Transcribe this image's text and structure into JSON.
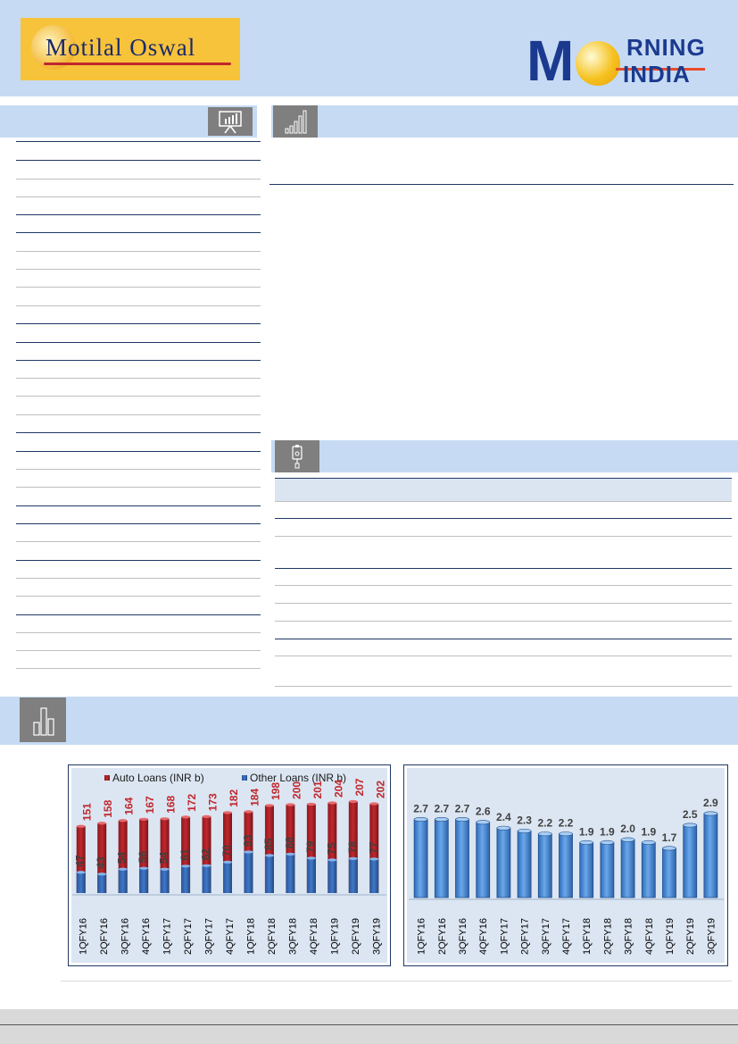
{
  "header": {
    "brand": "Motilal Oswal",
    "publication_m": "M",
    "publication_top": "RNING",
    "publication_bottom": "INDIA"
  },
  "icons": {
    "left_section": "presentation-chart-icon",
    "right_section": "bar-graph-icon",
    "mid_section": "clipboard-icon",
    "chart_section": "column-chart-icon"
  },
  "colors": {
    "header_bg": "#c6dbf3",
    "rule": "#203864",
    "auto_loans": "#c0272d",
    "other_loans": "#3f78c9",
    "bar_blue": "#4f8fd6"
  },
  "chart_data": [
    {
      "type": "bar",
      "categories": [
        "1QFY16",
        "2QFY16",
        "3QFY16",
        "4QFY16",
        "1QFY17",
        "2QFY17",
        "3QFY17",
        "4QFY17",
        "1QFY18",
        "2QFY18",
        "3QFY18",
        "4QFY18",
        "1QFY19",
        "2QFY19",
        "3QFY19"
      ],
      "series": [
        {
          "name": "Auto Loans (INR b)",
          "values": [
            151,
            158,
            164,
            167,
            168,
            172,
            173,
            182,
            184,
            198,
            200,
            201,
            204,
            207,
            202
          ],
          "color": "#c0272d"
        },
        {
          "name": "Other Loans (INR b)",
          "values": [
            47,
            43,
            54,
            56,
            54,
            61,
            62,
            70,
            93,
            85,
            88,
            79,
            75,
            78,
            77
          ],
          "color": "#3f78c9"
        }
      ],
      "legend": "top",
      "ylim": [
        0,
        210
      ],
      "grid": false
    },
    {
      "type": "bar",
      "categories": [
        "1QFY16",
        "2QFY16",
        "3QFY16",
        "4QFY16",
        "1QFY17",
        "2QFY17",
        "3QFY17",
        "4QFY17",
        "1QFY18",
        "2QFY18",
        "3QFY18",
        "4QFY18",
        "1QFY19",
        "2QFY19",
        "3QFY19"
      ],
      "values": [
        2.7,
        2.7,
        2.7,
        2.6,
        2.4,
        2.3,
        2.2,
        2.2,
        1.9,
        1.9,
        2.0,
        1.9,
        1.7,
        2.5,
        2.9
      ],
      "value_labels": [
        "2.7",
        "2.7",
        "2.7",
        "2.6",
        "2.4",
        "2.3",
        "2.2",
        "2.2",
        "1.9",
        "1.9",
        "2.0",
        "1.9",
        "1.7",
        "2.5",
        "2.9"
      ],
      "ylim": [
        0,
        3.2
      ],
      "grid": false
    }
  ]
}
